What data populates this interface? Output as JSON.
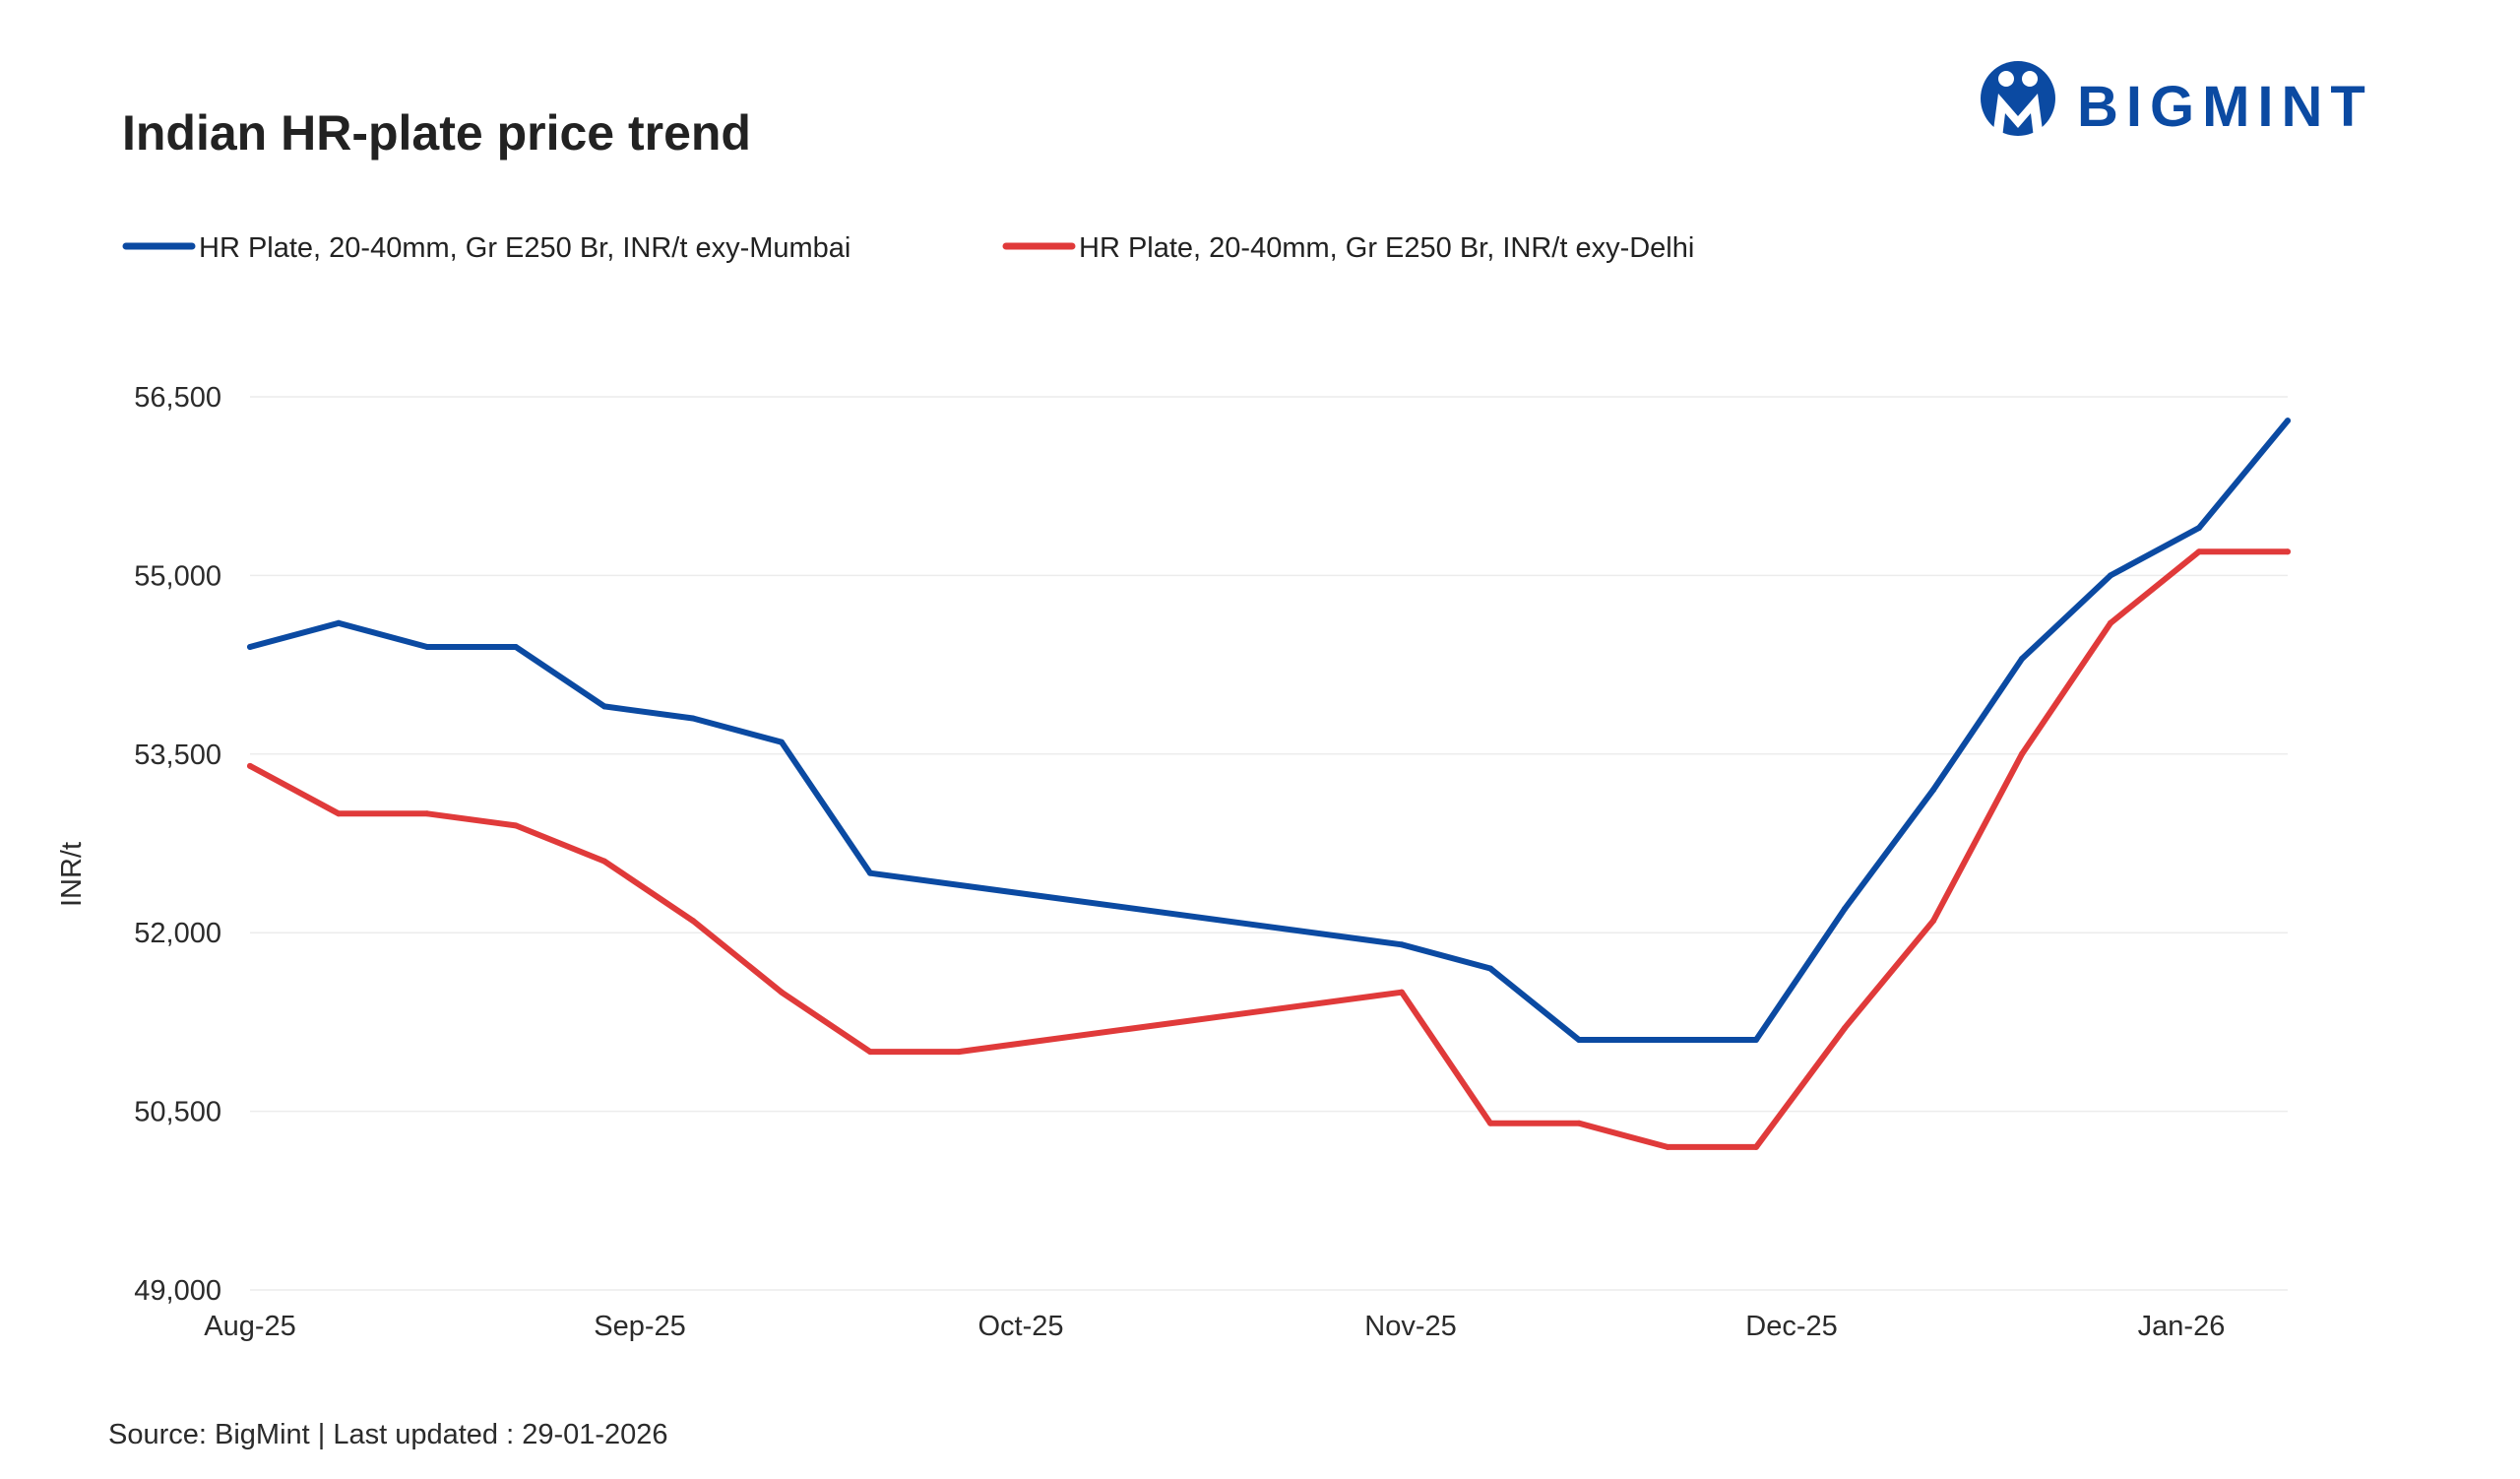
{
  "brand": {
    "name": "BIGMINT",
    "color": "#0b4aa2"
  },
  "source_text": "Source: BigMint | Last updated : 29-01-2026",
  "chart_data": {
    "type": "line",
    "title": "Indian HR-plate price trend",
    "ylabel": "INR/t",
    "xlabel": "",
    "ylim": [
      49000,
      56500
    ],
    "yticks": [
      49000,
      50500,
      52000,
      53500,
      55000,
      56500
    ],
    "ytick_labels": [
      "49,000",
      "50,500",
      "52,000",
      "53,500",
      "55,000",
      "56,500"
    ],
    "xlim": [
      0,
      23
    ],
    "xtick_positions": [
      0,
      4.4,
      8.7,
      13.1,
      17.4,
      21.8
    ],
    "xtick_labels": [
      "Aug-25",
      "Sep-25",
      "Oct-25",
      "Nov-25",
      "Dec-25",
      "Jan-26"
    ],
    "grid": true,
    "legend_position": "top-left",
    "series": [
      {
        "name": "HR Plate, 20-40mm, Gr E250 Br, INR/t exy-Mumbai",
        "color": "#0b4aa2",
        "x": [
          0,
          1,
          2,
          3,
          4,
          5,
          6,
          7,
          13,
          14,
          15,
          16,
          17,
          18,
          19,
          20,
          21,
          22,
          23
        ],
        "values": [
          54400,
          54600,
          54400,
          54400,
          53900,
          53800,
          53600,
          52500,
          51900,
          51700,
          51100,
          51100,
          51100,
          52200,
          53200,
          54300,
          55000,
          55400,
          56300
        ]
      },
      {
        "name": "HR Plate, 20-40mm, Gr E250 Br, INR/t exy-Delhi",
        "color": "#e03a3a",
        "x": [
          0,
          1,
          2,
          3,
          4,
          5,
          6,
          7,
          8,
          13,
          14,
          15,
          16,
          17,
          18,
          19,
          20,
          21,
          22,
          23
        ],
        "values": [
          53400,
          53000,
          53000,
          52900,
          52600,
          52100,
          51500,
          51000,
          51000,
          51500,
          50400,
          50400,
          50200,
          50200,
          51200,
          52100,
          53500,
          54600,
          55200,
          55200
        ]
      }
    ]
  }
}
